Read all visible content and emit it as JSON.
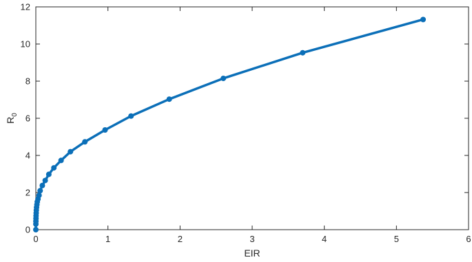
{
  "chart_data": {
    "type": "line",
    "title": "",
    "xlabel": "EIR",
    "ylabel": "R",
    "ylabel_subscript": "0",
    "xlim": [
      0,
      6
    ],
    "ylim": [
      0,
      12
    ],
    "xticks": [
      0,
      1,
      2,
      3,
      4,
      5,
      6
    ],
    "yticks": [
      0,
      2,
      4,
      6,
      8,
      10,
      12
    ],
    "grid": false,
    "legend": "none",
    "color": "#0b6fb8",
    "series": [
      {
        "x": [
          0,
          0.0005,
          0.001,
          0.002,
          0.003,
          0.005,
          0.007,
          0.01,
          0.015,
          0.02,
          0.03,
          0.045,
          0.06,
          0.09,
          0.13,
          0.18,
          0.25,
          0.35,
          0.48,
          0.68,
          0.96,
          1.32,
          1.85,
          2.6,
          3.7,
          5.37
        ],
        "y": [
          0,
          0.3,
          0.45,
          0.6,
          0.75,
          0.9,
          1.05,
          1.2,
          1.35,
          1.5,
          1.65,
          1.85,
          2.1,
          2.38,
          2.65,
          2.98,
          3.33,
          3.73,
          4.2,
          4.73,
          5.37,
          6.12,
          7.03,
          8.15,
          9.53,
          11.32
        ]
      }
    ]
  }
}
